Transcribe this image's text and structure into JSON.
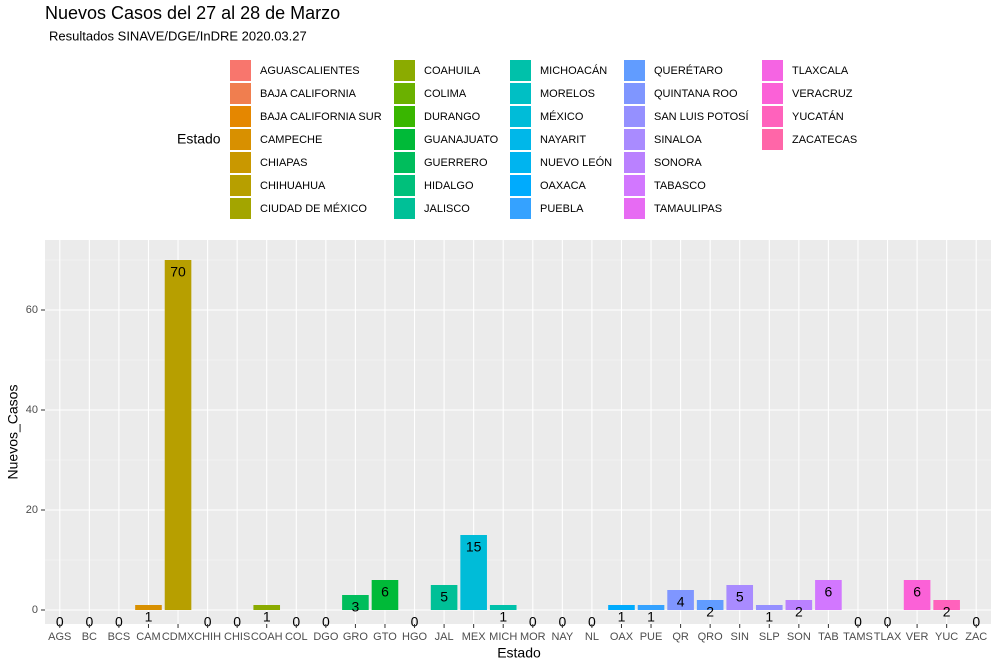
{
  "chart_data": {
    "type": "bar",
    "title": "Nuevos Casos del 27 al 28 de Marzo",
    "subtitle": "Resultados  SINAVE/DGE/InDRE 2020.03.27",
    "x_label": "Estado",
    "y_label": "Nuevos_Casos",
    "categories": [
      "AGS",
      "BC",
      "BCS",
      "CAM",
      "CDMX",
      "CHIH",
      "CHIS",
      "COAH",
      "COL",
      "DGO",
      "GRO",
      "GTO",
      "HGO",
      "JAL",
      "MEX",
      "MICH",
      "MOR",
      "NAY",
      "NL",
      "OAX",
      "PUE",
      "QR",
      "QRO",
      "SIN",
      "SLP",
      "SON",
      "TAB",
      "TAMS",
      "TLAX",
      "VER",
      "YUC",
      "ZAC"
    ],
    "values": [
      0,
      0,
      0,
      1,
      70,
      0,
      0,
      1,
      0,
      0,
      3,
      6,
      0,
      5,
      15,
      1,
      0,
      0,
      0,
      1,
      1,
      4,
      2,
      5,
      1,
      2,
      6,
      0,
      0,
      6,
      2,
      0
    ],
    "colors": [
      "#F8766D",
      "#F07E4F",
      "#E58700",
      "#D89000",
      "#B79F00",
      "#C99800",
      "#A3A500",
      "#8BAB00",
      "#6BB100",
      "#39B600",
      "#00BD5C",
      "#00BA38",
      "#00C07B",
      "#00C097",
      "#00BCD8",
      "#00C1AA",
      "#00BFC4",
      "#00B7E9",
      "#00B4EF",
      "#00ABFD",
      "#35A2FF",
      "#7F96FF",
      "#619CFF",
      "#A98BFF",
      "#9590FF",
      "#BA81FF",
      "#D277FF",
      "#E76BF3",
      "#F564E3",
      "#FB61D7",
      "#FF62BC",
      "#FF66A8"
    ],
    "legend": {
      "title": "Estado",
      "items": [
        {
          "name": "AGUASCALIENTES",
          "color": "#F8766D"
        },
        {
          "name": "BAJA CALIFORNIA",
          "color": "#F07E4F"
        },
        {
          "name": "BAJA CALIFORNIA SUR",
          "color": "#E58700"
        },
        {
          "name": "CAMPECHE",
          "color": "#D89000"
        },
        {
          "name": "CHIAPAS",
          "color": "#C99800"
        },
        {
          "name": "CHIHUAHUA",
          "color": "#B79F00"
        },
        {
          "name": "CIUDAD DE MÉXICO",
          "color": "#A3A500"
        },
        {
          "name": "COAHUILA",
          "color": "#8BAB00"
        },
        {
          "name": "COLIMA",
          "color": "#6BB100"
        },
        {
          "name": "DURANGO",
          "color": "#39B600"
        },
        {
          "name": "GUANAJUATO",
          "color": "#00BA38"
        },
        {
          "name": "GUERRERO",
          "color": "#00BD5C"
        },
        {
          "name": "HIDALGO",
          "color": "#00C07B"
        },
        {
          "name": "JALISCO",
          "color": "#00C097"
        },
        {
          "name": "MICHOACÁN",
          "color": "#00C1AA"
        },
        {
          "name": "MORELOS",
          "color": "#00BFC4"
        },
        {
          "name": "MÉXICO",
          "color": "#00BCD8"
        },
        {
          "name": "NAYARIT",
          "color": "#00B7E9"
        },
        {
          "name": "NUEVO LEÓN",
          "color": "#00B4EF"
        },
        {
          "name": "OAXACA",
          "color": "#00ABFD"
        },
        {
          "name": "PUEBLA",
          "color": "#35A2FF"
        },
        {
          "name": "QUERÉTARO",
          "color": "#619CFF"
        },
        {
          "name": "QUINTANA ROO",
          "color": "#7F96FF"
        },
        {
          "name": "SAN LUIS POTOSÍ",
          "color": "#9590FF"
        },
        {
          "name": "SINALOA",
          "color": "#A98BFF"
        },
        {
          "name": "SONORA",
          "color": "#BA81FF"
        },
        {
          "name": "TABASCO",
          "color": "#D277FF"
        },
        {
          "name": "TAMAULIPAS",
          "color": "#E76BF3"
        },
        {
          "name": "TLAXCALA",
          "color": "#F564E3"
        },
        {
          "name": "VERACRUZ",
          "color": "#FB61D7"
        },
        {
          "name": "YUCATÁN",
          "color": "#FF62BC"
        },
        {
          "name": "ZACATECAS",
          "color": "#FF66A8"
        }
      ]
    },
    "ylim": [
      -2.8,
      74
    ],
    "yticks": [
      0,
      20,
      40,
      60
    ],
    "grid": true
  }
}
